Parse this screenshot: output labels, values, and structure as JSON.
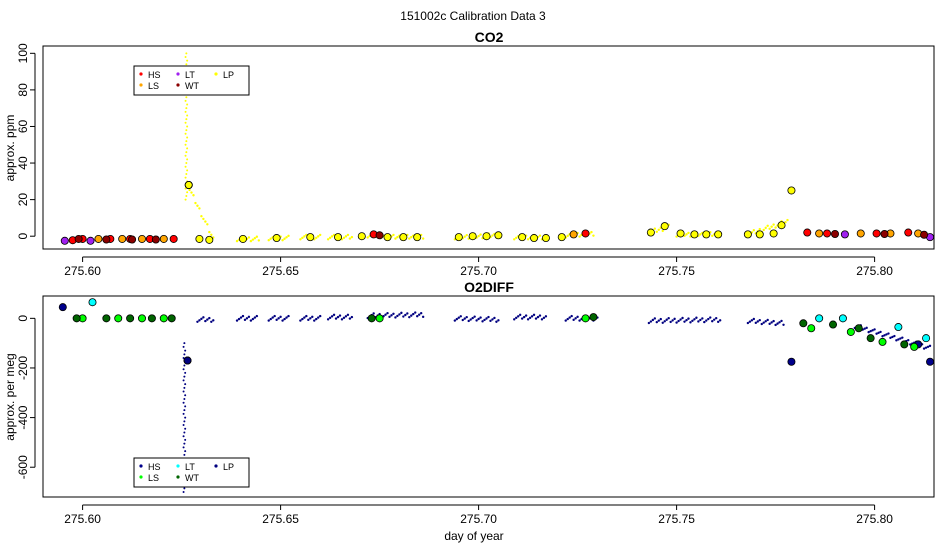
{
  "figure": {
    "suptitle": "151002c   Calibration Data 3"
  },
  "colors": {
    "HS": "#ff0000",
    "LS": "#ffa500",
    "LT": "#a020f0",
    "WT": "#8b0000",
    "LP": "#ffff00",
    "HS_o2": "#00008b",
    "LS_o2": "#00ff00",
    "LT_o2": "#00ffff",
    "WT_o2": "#006400",
    "LP_o2": "#000080",
    "raw_co2": "#ffff00",
    "raw_o2": "#000080"
  },
  "chart_data": [
    {
      "type": "scatter",
      "title": "CO2",
      "xlabel": "",
      "ylabel": "approx. ppm",
      "xlim": [
        275.59,
        275.815
      ],
      "ylim": [
        -7,
        104
      ],
      "x_ticks": [
        275.6,
        275.65,
        275.7,
        275.75,
        275.8
      ],
      "x_tick_labels": [
        "275.60",
        "275.65",
        "275.70",
        "275.75",
        "275.80"
      ],
      "y_ticks": [
        0,
        20,
        40,
        60,
        80,
        100
      ],
      "y_tick_labels": [
        "0",
        "20",
        "40",
        "60",
        "80",
        "100"
      ],
      "legend": {
        "position": "top-left",
        "entries": [
          {
            "label": "HS",
            "color_key": "HS"
          },
          {
            "label": "LT",
            "color_key": "LT"
          },
          {
            "label": "LP",
            "color_key": "LP"
          },
          {
            "label": "LS",
            "color_key": "LS"
          },
          {
            "label": "WT",
            "color_key": "WT"
          }
        ]
      },
      "raw_segments": [
        [
          275.6265,
          275.633,
          28,
          -1.5
        ],
        [
          275.639,
          275.6445,
          -1.5,
          -1.5
        ],
        [
          275.647,
          275.652,
          -1.0,
          -1.0
        ],
        [
          275.655,
          275.66,
          -0.5,
          -0.5
        ],
        [
          275.662,
          275.668,
          -0.5,
          -0.5
        ],
        [
          275.672,
          275.676,
          0.5,
          0.5
        ],
        [
          275.677,
          275.686,
          -0.5,
          -0.5
        ],
        [
          275.694,
          275.705,
          -0.5,
          0.5
        ],
        [
          275.709,
          275.717,
          -0.5,
          -0.5
        ],
        [
          275.722,
          275.729,
          0.5,
          1.5
        ],
        [
          275.743,
          275.748,
          2,
          5
        ],
        [
          275.75,
          275.761,
          1,
          1
        ],
        [
          275.768,
          275.778,
          1,
          8
        ]
      ],
      "spike": {
        "x": 275.6262,
        "y_from": 20,
        "y_to": 100
      },
      "series": [
        {
          "name": "HS",
          "color_key": "HS",
          "points": [
            [
              275.5975,
              -2.2
            ],
            [
              275.6,
              -1.5
            ],
            [
              275.607,
              -1.5
            ],
            [
              275.612,
              -1.5
            ],
            [
              275.617,
              -1.5
            ],
            [
              275.623,
              -1.5
            ],
            [
              275.6735,
              1.0
            ],
            [
              275.727,
              1.5
            ],
            [
              275.783,
              2.0
            ],
            [
              275.788,
              1.5
            ],
            [
              275.8005,
              1.5
            ],
            [
              275.8085,
              2.0
            ]
          ]
        },
        {
          "name": "LS",
          "color_key": "LS",
          "points": [
            [
              275.604,
              -1.5
            ],
            [
              275.61,
              -1.5
            ],
            [
              275.615,
              -1.5
            ],
            [
              275.6205,
              -1.5
            ],
            [
              275.724,
              1.0
            ],
            [
              275.786,
              1.5
            ],
            [
              275.7965,
              1.5
            ],
            [
              275.804,
              1.5
            ],
            [
              275.811,
              1.5
            ]
          ]
        },
        {
          "name": "LT",
          "color_key": "LT",
          "points": [
            [
              275.5955,
              -2.5
            ],
            [
              275.602,
              -2.5
            ],
            [
              275.7925,
              1.0
            ],
            [
              275.814,
              -0.5
            ]
          ]
        },
        {
          "name": "WT",
          "color_key": "WT",
          "points": [
            [
              275.599,
              -1.5
            ],
            [
              275.606,
              -1.8
            ],
            [
              275.6125,
              -1.8
            ],
            [
              275.6185,
              -1.8
            ],
            [
              275.675,
              0.5
            ],
            [
              275.79,
              1.2
            ],
            [
              275.8025,
              1.2
            ],
            [
              275.8125,
              0.8
            ]
          ]
        },
        {
          "name": "LP",
          "color_key": "LP",
          "points": [
            [
              275.6268,
              28
            ],
            [
              275.6295,
              -1.5
            ],
            [
              275.632,
              -2.0
            ],
            [
              275.6405,
              -1.5
            ],
            [
              275.649,
              -1.0
            ],
            [
              275.6575,
              -0.5
            ],
            [
              275.6645,
              -0.5
            ],
            [
              275.6705,
              0.0
            ],
            [
              275.677,
              -0.5
            ],
            [
              275.681,
              -0.5
            ],
            [
              275.6845,
              -0.5
            ],
            [
              275.695,
              -0.5
            ],
            [
              275.6985,
              0.0
            ],
            [
              275.702,
              0.0
            ],
            [
              275.705,
              0.5
            ],
            [
              275.711,
              -0.5
            ],
            [
              275.714,
              -1.0
            ],
            [
              275.717,
              -1.0
            ],
            [
              275.721,
              -0.5
            ],
            [
              275.7435,
              2.0
            ],
            [
              275.747,
              5.5
            ],
            [
              275.751,
              1.5
            ],
            [
              275.7545,
              1.0
            ],
            [
              275.7575,
              1.0
            ],
            [
              275.7605,
              1.0
            ],
            [
              275.768,
              1.0
            ],
            [
              275.771,
              1.0
            ],
            [
              275.7745,
              1.5
            ],
            [
              275.7765,
              6.0
            ],
            [
              275.779,
              25.0
            ]
          ]
        }
      ]
    },
    {
      "type": "scatter",
      "title": "O2DIFF",
      "xlabel": "day of year",
      "ylabel": "approx. per meg",
      "xlim": [
        275.59,
        275.815
      ],
      "ylim": [
        -720,
        90
      ],
      "x_ticks": [
        275.6,
        275.65,
        275.7,
        275.75,
        275.8
      ],
      "x_tick_labels": [
        "275.60",
        "275.65",
        "275.70",
        "275.75",
        "275.80"
      ],
      "y_ticks": [
        0,
        -200,
        -400,
        -600
      ],
      "y_tick_labels": [
        "0",
        "-200",
        "-400",
        "-600"
      ],
      "legend": {
        "position": "bottom-left",
        "entries": [
          {
            "label": "HS",
            "color_key": "HS_o2"
          },
          {
            "label": "LT",
            "color_key": "LT_o2"
          },
          {
            "label": "LP",
            "color_key": "LP_o2"
          },
          {
            "label": "LS",
            "color_key": "LS_o2"
          },
          {
            "label": "WT",
            "color_key": "WT_o2"
          }
        ]
      },
      "raw_segments": [
        [
          275.629,
          275.633,
          -5,
          -5
        ],
        [
          275.639,
          275.644,
          0,
          0
        ],
        [
          275.647,
          275.652,
          0,
          0
        ],
        [
          275.655,
          275.66,
          0,
          0
        ],
        [
          275.662,
          275.668,
          5,
          5
        ],
        [
          275.672,
          275.686,
          10,
          15
        ],
        [
          275.694,
          275.705,
          0,
          -5
        ],
        [
          275.709,
          275.717,
          5,
          5
        ],
        [
          275.722,
          275.73,
          0,
          0
        ],
        [
          275.743,
          275.761,
          -10,
          -5
        ],
        [
          275.768,
          275.777,
          -10,
          -20
        ],
        [
          275.795,
          275.814,
          -30,
          -120
        ]
      ],
      "spike": {
        "x": 275.6257,
        "y_from": -700,
        "y_to": -100
      },
      "series": [
        {
          "name": "HS",
          "color_key": "HS_o2",
          "points": [
            [
              275.595,
              45
            ],
            [
              275.779,
              -175
            ],
            [
              275.811,
              -105
            ],
            [
              275.814,
              -175
            ]
          ]
        },
        {
          "name": "LS",
          "color_key": "LS_o2",
          "points": [
            [
              275.6,
              0
            ],
            [
              275.609,
              0
            ],
            [
              275.615,
              0
            ],
            [
              275.6205,
              0
            ],
            [
              275.675,
              0
            ],
            [
              275.727,
              0
            ],
            [
              275.784,
              -40
            ],
            [
              275.794,
              -55
            ],
            [
              275.802,
              -95
            ],
            [
              275.81,
              -115
            ]
          ]
        },
        {
          "name": "LT",
          "color_key": "LT_o2",
          "points": [
            [
              275.6025,
              65
            ],
            [
              275.786,
              0
            ],
            [
              275.792,
              0
            ],
            [
              275.806,
              -35
            ],
            [
              275.813,
              -80
            ]
          ]
        },
        {
          "name": "WT",
          "color_key": "WT_o2",
          "points": [
            [
              275.5985,
              0
            ],
            [
              275.606,
              0
            ],
            [
              275.612,
              0
            ],
            [
              275.6175,
              0
            ],
            [
              275.6225,
              0
            ],
            [
              275.673,
              0
            ],
            [
              275.729,
              5
            ],
            [
              275.782,
              -20
            ],
            [
              275.7895,
              -25
            ],
            [
              275.796,
              -40
            ],
            [
              275.799,
              -80
            ],
            [
              275.8075,
              -105
            ]
          ]
        },
        {
          "name": "LP",
          "color_key": "LP_o2",
          "points": [
            [
              275.6265,
              -170
            ]
          ]
        }
      ]
    }
  ]
}
